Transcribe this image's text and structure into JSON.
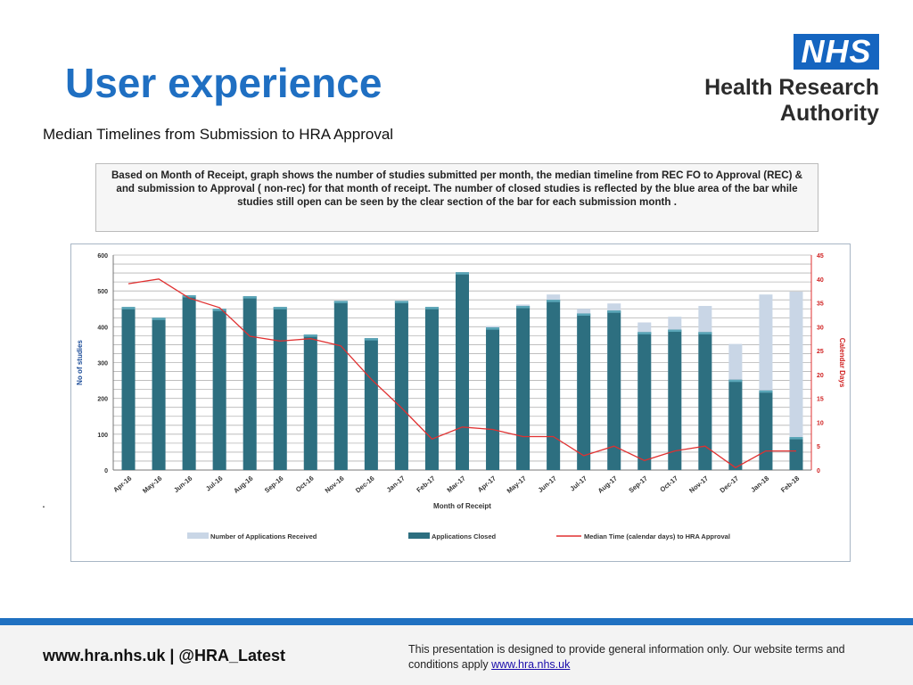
{
  "slide": {
    "title": "User experience",
    "subtitle": "Median Timelines from Submission to HRA Approval",
    "note": "Based on Month of Receipt, graph shows the number of studies submitted per month, the median timeline from REC FO to Approval (REC) & and submission to Approval ( non-rec) for that month of receipt. The number of closed studies is reflected by the blue area of the bar while studies still open can be seen by the clear section of the bar for each submission month .",
    "stray_mark": "."
  },
  "logo": {
    "nhs": "NHS",
    "line1": "Health Research",
    "line2": "Authority",
    "nhs_color": "#1565c0"
  },
  "footer": {
    "links": "www.hra.nhs.uk | @HRA_Latest",
    "disclaimer": "This presentation is designed to provide general information only. Our website terms and conditions apply ",
    "link_text": "www.hra.nhs.uk",
    "accent_color": "#1f70c1"
  },
  "chart_data": {
    "type": "bar",
    "title": "",
    "xlabel": "Month of Receipt",
    "ylabel": "No of studies",
    "y2label": "Calendar Days",
    "ylim": [
      0,
      600
    ],
    "y2lim": [
      0,
      45
    ],
    "yticks": [
      0,
      100,
      200,
      300,
      400,
      500,
      600
    ],
    "y2ticks": [
      0,
      5,
      10,
      15,
      20,
      25,
      30,
      35,
      40,
      45
    ],
    "grid": true,
    "legend_position": "bottom",
    "categories": [
      "Apr-16",
      "May-16",
      "Jun-16",
      "Jul-16",
      "Aug-16",
      "Sep-16",
      "Oct-16",
      "Nov-16",
      "Dec-16",
      "Jan-17",
      "Feb-17",
      "Mar-17",
      "Apr-17",
      "May-17",
      "Jun-17",
      "Jul-17",
      "Aug-17",
      "Sep-17",
      "Oct-17",
      "Nov-17",
      "Dec-17",
      "Jan-18",
      "Feb-18"
    ],
    "series": [
      {
        "name": "Number of Applications Received",
        "kind": "bar",
        "color": "#c9d6e6",
        "values": [
          455,
          425,
          488,
          450,
          485,
          455,
          378,
          472,
          368,
          472,
          455,
          552,
          402,
          462,
          490,
          450,
          465,
          412,
          428,
          458,
          352,
          490,
          498
        ]
      },
      {
        "name": "Applications Closed",
        "kind": "bar",
        "color": "#2d6f80",
        "values": [
          455,
          425,
          488,
          450,
          485,
          455,
          378,
          472,
          368,
          472,
          455,
          552,
          398,
          458,
          475,
          437,
          445,
          385,
          392,
          385,
          252,
          222,
          92
        ]
      },
      {
        "name": "Median Time (calendar days) to HRA Approval",
        "kind": "line",
        "axis": "right",
        "color": "#e03030",
        "values": [
          39,
          40,
          36,
          34,
          28,
          27,
          27.5,
          26,
          19,
          13,
          6.5,
          9,
          8.5,
          7,
          7,
          3,
          5,
          2,
          4,
          5,
          0.5,
          4,
          4
        ]
      }
    ]
  }
}
